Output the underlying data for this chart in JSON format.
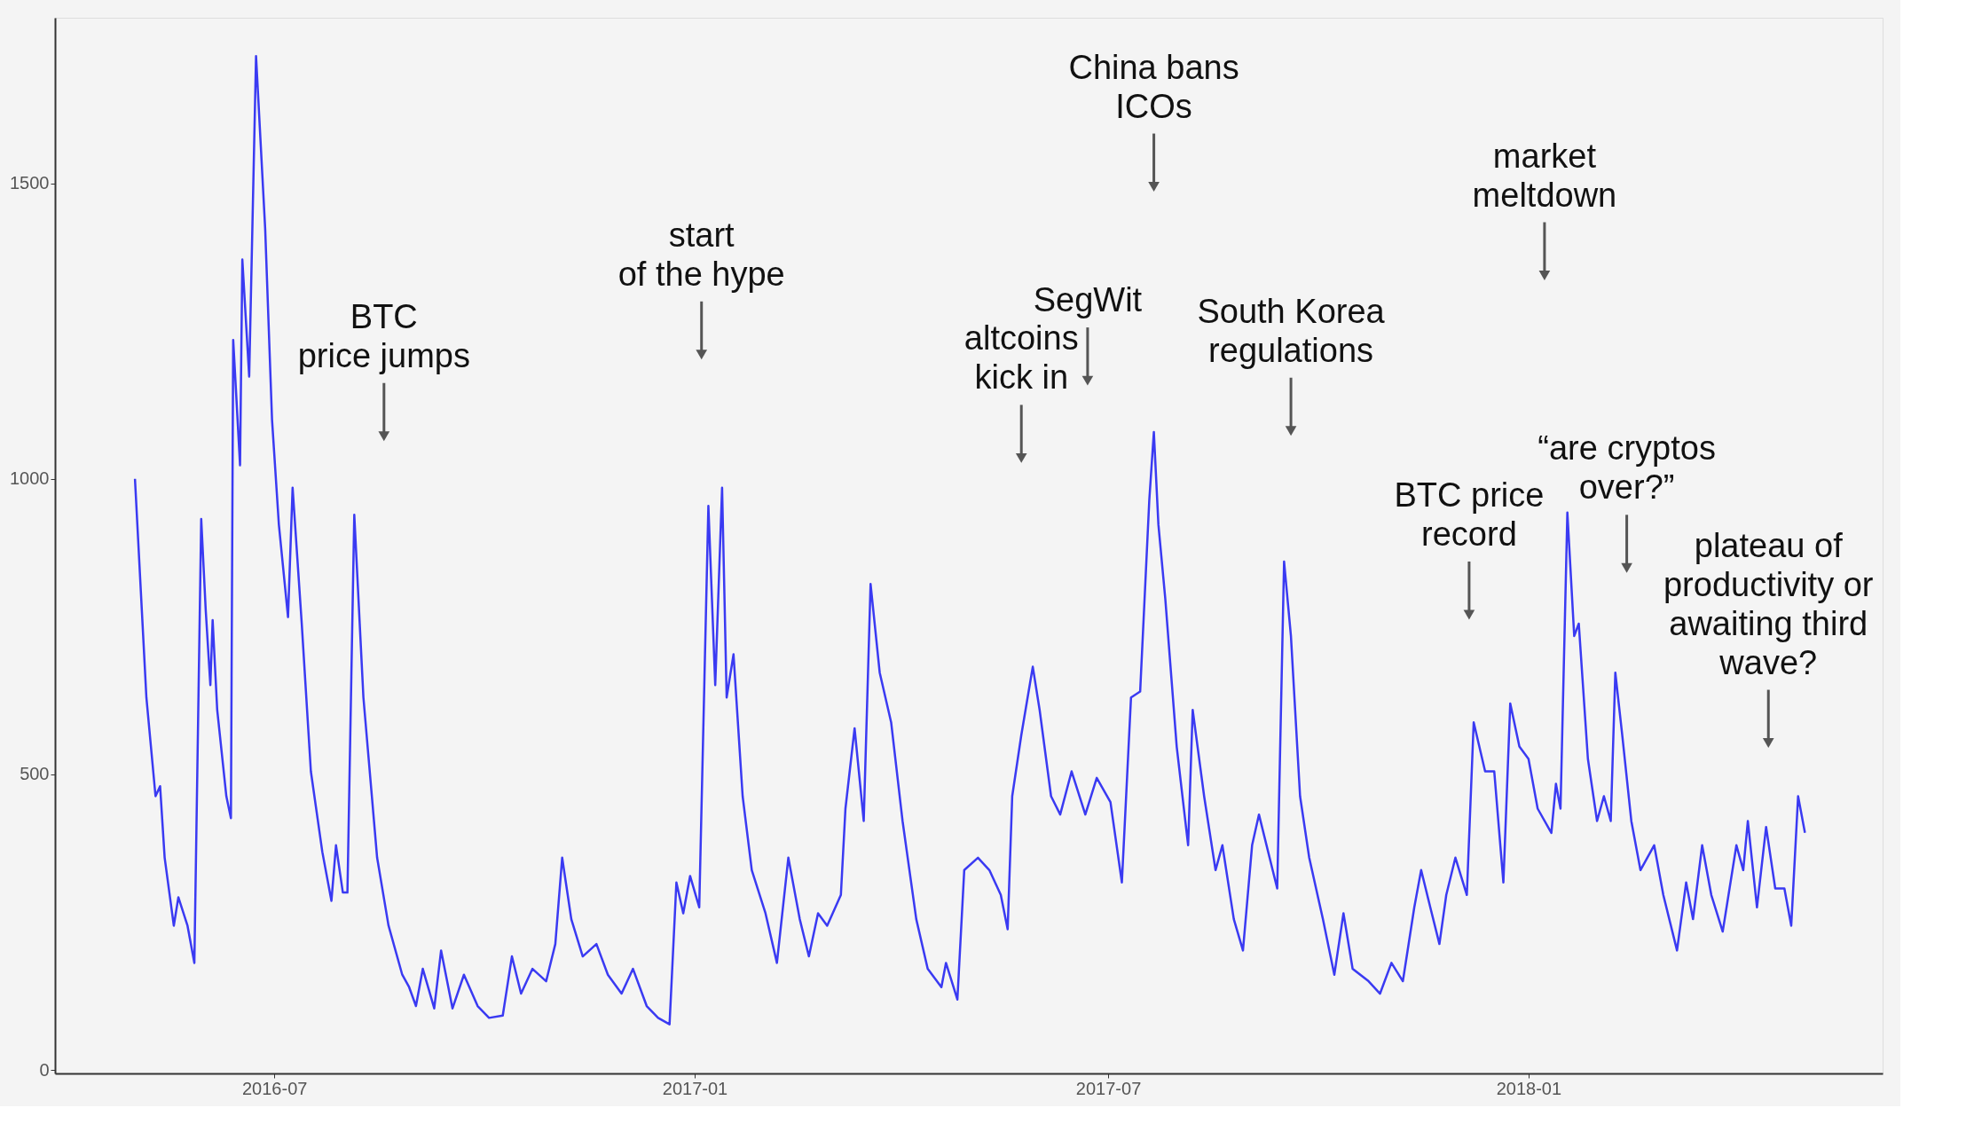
{
  "chart_data": {
    "type": "line",
    "x": [
      "2016-05-01",
      "2016-05-06",
      "2016-05-10",
      "2016-05-12",
      "2016-05-14",
      "2016-05-18",
      "2016-05-20",
      "2016-05-24",
      "2016-05-27",
      "2016-05-30",
      "2016-06-01",
      "2016-06-03",
      "2016-06-04",
      "2016-06-06",
      "2016-06-10",
      "2016-06-12",
      "2016-06-13",
      "2016-06-16",
      "2016-06-17",
      "2016-06-20",
      "2016-06-23",
      "2016-06-27",
      "2016-06-30",
      "2016-07-03",
      "2016-07-07",
      "2016-07-09",
      "2016-07-13",
      "2016-07-17",
      "2016-07-22",
      "2016-07-26",
      "2016-07-28",
      "2016-07-31",
      "2016-08-02",
      "2016-08-05",
      "2016-08-09",
      "2016-08-15",
      "2016-08-20",
      "2016-08-26",
      "2016-08-29",
      "2016-09-01",
      "2016-09-04",
      "2016-09-09",
      "2016-09-12",
      "2016-09-17",
      "2016-09-22",
      "2016-09-28",
      "2016-10-03",
      "2016-10-09",
      "2016-10-13",
      "2016-10-17",
      "2016-10-22",
      "2016-10-28",
      "2016-11-01",
      "2016-11-04",
      "2016-11-08",
      "2016-11-13",
      "2016-11-19",
      "2016-11-24",
      "2016-11-30",
      "2016-12-05",
      "2016-12-11",
      "2016-12-16",
      "2016-12-21",
      "2016-12-24",
      "2016-12-27",
      "2016-12-30",
      "2017-01-03",
      "2017-01-07",
      "2017-01-10",
      "2017-01-13",
      "2017-01-15",
      "2017-01-18",
      "2017-01-22",
      "2017-01-26",
      "2017-02-01",
      "2017-02-06",
      "2017-02-11",
      "2017-02-16",
      "2017-02-20",
      "2017-02-24",
      "2017-02-28",
      "2017-03-06",
      "2017-03-08",
      "2017-03-12",
      "2017-03-16",
      "2017-03-19",
      "2017-03-23",
      "2017-03-28",
      "2017-04-02",
      "2017-04-08",
      "2017-04-13",
      "2017-04-19",
      "2017-04-21",
      "2017-04-26",
      "2017-04-29",
      "2017-05-05",
      "2017-05-10",
      "2017-05-15",
      "2017-05-18",
      "2017-05-20",
      "2017-05-24",
      "2017-05-29",
      "2017-06-01",
      "2017-06-06",
      "2017-06-10",
      "2017-06-15",
      "2017-06-21",
      "2017-06-26",
      "2017-07-02",
      "2017-07-07",
      "2017-07-11",
      "2017-07-15",
      "2017-07-19",
      "2017-07-21",
      "2017-07-23",
      "2017-07-26",
      "2017-07-31",
      "2017-08-05",
      "2017-08-07",
      "2017-08-12",
      "2017-08-17",
      "2017-08-20",
      "2017-08-25",
      "2017-08-29",
      "2017-09-02",
      "2017-09-05",
      "2017-09-11",
      "2017-09-13",
      "2017-09-16",
      "2017-09-19",
      "2017-09-23",
      "2017-09-27",
      "2017-10-03",
      "2017-10-08",
      "2017-10-12",
      "2017-10-16",
      "2017-10-23",
      "2017-10-28",
      "2017-11-02",
      "2017-11-07",
      "2017-11-12",
      "2017-11-15",
      "2017-11-19",
      "2017-11-23",
      "2017-11-26",
      "2017-11-30",
      "2017-12-05",
      "2017-12-08",
      "2017-12-13",
      "2017-12-17",
      "2017-12-21",
      "2017-12-24",
      "2017-12-28",
      "2018-01-01",
      "2018-01-05",
      "2018-01-11",
      "2018-01-13",
      "2018-01-15",
      "2018-01-18",
      "2018-01-21",
      "2018-01-23",
      "2018-01-27",
      "2018-01-31",
      "2018-02-03",
      "2018-02-06",
      "2018-02-08",
      "2018-02-11",
      "2018-02-15",
      "2018-02-19",
      "2018-02-25",
      "2018-03-01",
      "2018-03-07",
      "2018-03-11",
      "2018-03-14",
      "2018-03-18",
      "2018-03-22",
      "2018-03-27",
      "2018-04-02",
      "2018-04-05",
      "2018-04-07",
      "2018-04-11",
      "2018-04-15",
      "2018-04-19",
      "2018-04-23",
      "2018-04-26",
      "2018-04-29",
      "2018-05-02"
    ],
    "series": [
      {
        "color": "#3a3af2",
        "values": [
          1000,
          630,
          463,
          480,
          359,
          244,
          292,
          244,
          181,
          932,
          776,
          651,
          761,
          609,
          463,
          426,
          1235,
          1023,
          1371,
          1173,
          1715,
          1423,
          1100,
          922,
          766,
          985,
          755,
          505,
          369,
          286,
          380,
          300,
          300,
          939,
          630,
          359,
          244,
          161,
          140,
          108,
          171,
          104,
          202,
          104,
          161,
          108,
          88,
          92,
          192,
          129,
          171,
          150,
          213,
          359,
          255,
          192,
          213,
          161,
          129,
          171,
          108,
          88,
          77,
          317,
          265,
          328,
          275,
          954,
          651,
          985,
          630,
          703,
          463,
          338,
          265,
          181,
          359,
          255,
          192,
          265,
          244,
          296,
          442,
          578,
          421,
          822,
          672,
          588,
          421,
          255,
          171,
          140,
          181,
          119,
          338,
          359,
          338,
          296,
          238,
          463,
          567,
          682,
          609,
          463,
          432,
          505,
          432,
          494,
          453,
          317,
          630,
          640,
          964,
          1079,
          922,
          797,
          547,
          380,
          609,
          463,
          338,
          380,
          255,
          202,
          380,
          432,
          338,
          307,
          860,
          734,
          463,
          359,
          255,
          161,
          265,
          171,
          150,
          129,
          181,
          150,
          275,
          338,
          275,
          213,
          296,
          359,
          296,
          588,
          505,
          505,
          317,
          620,
          547,
          526,
          442,
          401,
          484,
          442,
          943,
          734,
          755,
          526,
          421,
          463,
          421,
          672,
          567,
          421,
          338,
          380,
          296,
          202,
          317,
          255,
          380,
          296,
          234,
          380,
          338,
          421,
          275,
          411,
          307,
          307,
          244,
          463,
          401
        ]
      }
    ],
    "xlim": [
      "2016-03-27",
      "2018-06-05"
    ],
    "xticks": [
      "2016-07",
      "2017-01",
      "2017-07",
      "2018-01"
    ],
    "ylim": [
      -6,
      1780
    ],
    "yticks": [
      0,
      500,
      1000,
      1500
    ],
    "grid": false,
    "annotations": [
      {
        "text": "BTC\nprice jumps",
        "x": "2016-08-18",
        "y": 1072
      },
      {
        "text": "start\nof the hype",
        "x": "2017-01-04",
        "y": 1210
      },
      {
        "text": "altcoins\nkick in",
        "x": "2017-05-24",
        "y": 1035
      },
      {
        "text": "SegWit",
        "x": "2017-06-22",
        "y": 1166
      },
      {
        "text": "China bans\nICOs",
        "x": "2017-07-21",
        "y": 1494
      },
      {
        "text": "South Korea\nregulations",
        "x": "2017-09-19",
        "y": 1081
      },
      {
        "text": "BTC price\nrecord",
        "x": "2017-12-06",
        "y": 770
      },
      {
        "text": "market\nmeltdown",
        "x": "2018-01-08",
        "y": 1344
      },
      {
        "text": "“are cryptos\nover?”",
        "x": "2018-02-13",
        "y": 849
      },
      {
        "text": "plateau of\nproductivity or\nawaiting third\nwave?",
        "x": "2018-04-16",
        "y": 553
      }
    ]
  }
}
